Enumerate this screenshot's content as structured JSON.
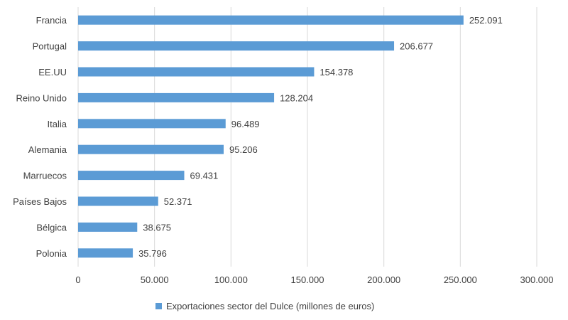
{
  "chart_data": {
    "type": "bar",
    "orientation": "horizontal",
    "title": "",
    "xlabel": "",
    "ylabel": "",
    "categories": [
      "Francia",
      "Portugal",
      "EE.UU",
      "Reino Unido",
      "Italia",
      "Alemania",
      "Marruecos",
      "Países Bajos",
      "Bélgica",
      "Polonia"
    ],
    "series": [
      {
        "name": "Exportaciones sector del Dulce (millones de euros)",
        "values": [
          252091,
          206677,
          154378,
          128204,
          96489,
          95206,
          69431,
          52371,
          38675,
          35796
        ],
        "data_labels": [
          "252.091",
          "206.677",
          "154.378",
          "128.204",
          "96.489",
          "95.206",
          "69.431",
          "52.371",
          "38.675",
          "35.796"
        ],
        "color": "#5B9BD5"
      }
    ],
    "xlim": [
      0,
      300000
    ],
    "x_ticks": [
      0,
      50000,
      100000,
      150000,
      200000,
      250000,
      300000
    ],
    "x_tick_labels": [
      "0",
      "50.000",
      "100.000",
      "150.000",
      "200.000",
      "250.000",
      "300.000"
    ],
    "grid": "vertical",
    "legend_position": "bottom",
    "colors": {
      "bar": "#5B9BD5",
      "grid": "#d9d9d9",
      "text": "#404040"
    }
  }
}
